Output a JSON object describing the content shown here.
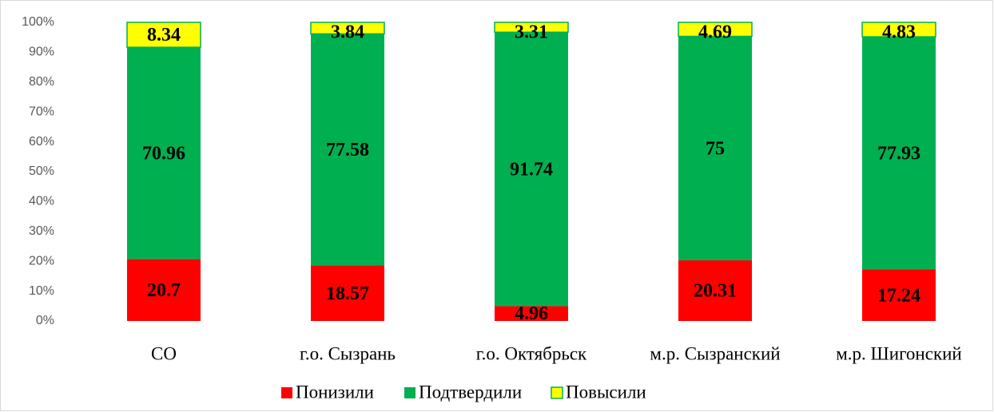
{
  "chart_data": {
    "type": "stacked_bar",
    "categories": [
      "СО",
      "г.о. Сызрань",
      "г.о. Октябрьск",
      "м.р. Сызранский",
      "м.р. Шигонский"
    ],
    "series": [
      {
        "name": "Понизили",
        "color": "#ff0000",
        "values": [
          20.7,
          18.57,
          4.96,
          20.31,
          17.24
        ]
      },
      {
        "name": "Подтвердили",
        "color": "#00b050",
        "values": [
          70.96,
          77.58,
          91.74,
          75,
          77.93
        ]
      },
      {
        "name": "Повысили",
        "color": "#ffff00",
        "values": [
          8.34,
          3.84,
          3.31,
          4.69,
          4.83
        ]
      }
    ],
    "ylim": [
      0,
      100
    ],
    "yticks": [
      {
        "value": 0,
        "label": "0%"
      },
      {
        "value": 10,
        "label": "10%"
      },
      {
        "value": 20,
        "label": "20%"
      },
      {
        "value": 30,
        "label": "30%"
      },
      {
        "value": 40,
        "label": "40%"
      },
      {
        "value": 50,
        "label": "50%"
      },
      {
        "value": 60,
        "label": "60%"
      },
      {
        "value": 70,
        "label": "70%"
      },
      {
        "value": 80,
        "label": "80%"
      },
      {
        "value": 90,
        "label": "90%"
      },
      {
        "value": 100,
        "label": "100%"
      }
    ],
    "grid": false,
    "legend": "bottom"
  }
}
